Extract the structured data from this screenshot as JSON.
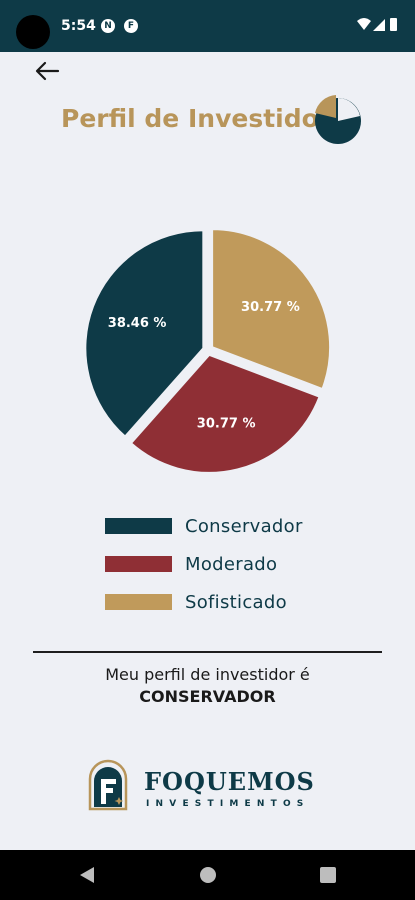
{
  "status_bar": {
    "time": "5:54",
    "notification_icons": [
      "N",
      "F"
    ]
  },
  "header": {
    "title": "Perfil de Investidor"
  },
  "chart_data": {
    "type": "pie",
    "slices": [
      {
        "label": "Conservador",
        "value": 38.46,
        "display": "38.46 %",
        "color": "#0e3a47"
      },
      {
        "label": "Moderado",
        "value": 30.77,
        "display": "30.77 %",
        "color": "#8f2f35"
      },
      {
        "label": "Sofisticado",
        "value": 30.77,
        "display": "30.77 %",
        "color": "#c09a5b"
      }
    ],
    "legend_position": "bottom"
  },
  "legend": {
    "items": [
      "Conservador",
      "Moderado",
      "Sofisticado"
    ]
  },
  "result": {
    "line1": "Meu perfil de investidor é",
    "line2": "CONSERVADOR"
  },
  "brand": {
    "name": "FOQUEMOS",
    "sub": "INVESTIMENTOS"
  },
  "colors": {
    "navy": "#0e3a47",
    "gold": "#b8955a",
    "red": "#8f2f35",
    "background": "#eef0f5"
  }
}
